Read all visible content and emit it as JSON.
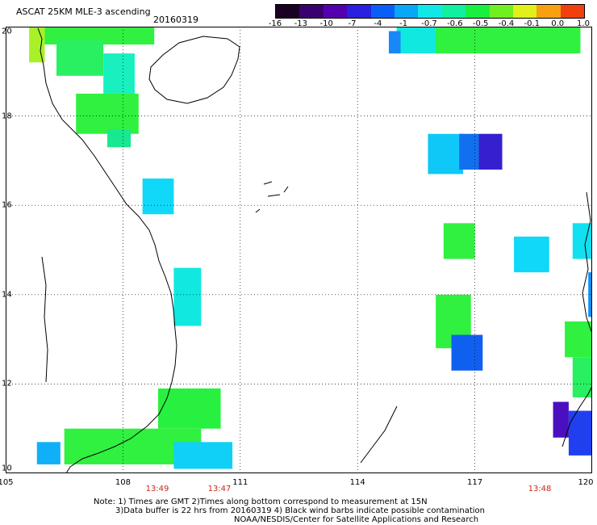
{
  "header": {
    "title": "ASCAT 25KM MLE-3 ascending",
    "date": "20160319"
  },
  "colorbar": {
    "labels": [
      "-16",
      "-13",
      "-10",
      "-7",
      "-4",
      "-1",
      "-0.7",
      "-0.6",
      "-0.5",
      "-0.4",
      "-0.1",
      "0.0",
      "1.0"
    ],
    "colors": [
      "#1a0022",
      "#3a0070",
      "#5500b0",
      "#2a20e0",
      "#0a5ef8",
      "#0aa6f8",
      "#10e8e8",
      "#10f0a0",
      "#18f040",
      "#70f020",
      "#e0f018",
      "#f8a010",
      "#f04010"
    ]
  },
  "axes": {
    "lon_labels": [
      "105",
      "108",
      "111",
      "114",
      "117",
      "120"
    ],
    "lat_labels": [
      "20",
      "18",
      "16",
      "14",
      "12",
      "10"
    ],
    "lon_range": [
      105,
      120
    ],
    "lat_range": [
      10,
      20
    ],
    "grid": true
  },
  "time_labels": [
    "13:49",
    "13:47",
    "13:48"
  ],
  "notes": {
    "line1": "Note: 1) Times are GMT 2)Times along bottom correspond to measurement at 15N",
    "line2": "3)Data buffer is 22 hrs from 20160319 4) Black wind barbs indicate possible contamination",
    "line3": "NOAA/NESDIS/Center for Satellite Applications and Research"
  },
  "cells": [
    {
      "lon": 106.0,
      "lat": 19.6,
      "w": 2.8,
      "h": 1.6,
      "c": "#30f040"
    },
    {
      "lon": 105.6,
      "lat": 19.2,
      "w": 0.4,
      "h": 0.8,
      "c": "#a8f028"
    },
    {
      "lon": 106.3,
      "lat": 18.9,
      "w": 1.2,
      "h": 0.8,
      "c": "#28f060"
    },
    {
      "lon": 107.5,
      "lat": 18.5,
      "w": 0.8,
      "h": 0.9,
      "c": "#18f0c0"
    },
    {
      "lon": 106.8,
      "lat": 17.6,
      "w": 1.6,
      "h": 0.9,
      "c": "#30f040"
    },
    {
      "lon": 107.6,
      "lat": 17.3,
      "w": 0.6,
      "h": 0.4,
      "c": "#18e890"
    },
    {
      "lon": 108.5,
      "lat": 15.8,
      "w": 0.8,
      "h": 0.8,
      "c": "#10d8f8"
    },
    {
      "lon": 109.3,
      "lat": 13.3,
      "w": 0.7,
      "h": 1.3,
      "c": "#10e8e0"
    },
    {
      "lon": 108.9,
      "lat": 11.0,
      "w": 1.6,
      "h": 0.9,
      "c": "#28f040"
    },
    {
      "lon": 106.5,
      "lat": 10.2,
      "w": 3.5,
      "h": 0.8,
      "c": "#30f040"
    },
    {
      "lon": 109.3,
      "lat": 10.1,
      "w": 1.5,
      "h": 0.6,
      "c": "#10d0f8"
    },
    {
      "lon": 105.8,
      "lat": 10.2,
      "w": 0.6,
      "h": 0.5,
      "c": "#10b0f8"
    },
    {
      "lon": 115.0,
      "lat": 19.4,
      "w": 1.2,
      "h": 1.0,
      "c": "#10e8e0"
    },
    {
      "lon": 116.0,
      "lat": 19.4,
      "w": 3.7,
      "h": 0.6,
      "c": "#30f040"
    },
    {
      "lon": 114.8,
      "lat": 19.4,
      "w": 0.3,
      "h": 0.5,
      "c": "#1888f8"
    },
    {
      "lon": 115.8,
      "lat": 16.7,
      "w": 0.9,
      "h": 0.9,
      "c": "#10c8f8"
    },
    {
      "lon": 116.6,
      "lat": 16.8,
      "w": 0.5,
      "h": 0.8,
      "c": "#1070f0"
    },
    {
      "lon": 117.1,
      "lat": 16.8,
      "w": 0.6,
      "h": 0.8,
      "c": "#3520d0"
    },
    {
      "lon": 116.2,
      "lat": 14.8,
      "w": 0.8,
      "h": 0.8,
      "c": "#30f040"
    },
    {
      "lon": 118.0,
      "lat": 14.5,
      "w": 0.9,
      "h": 0.8,
      "c": "#10d8f8"
    },
    {
      "lon": 119.5,
      "lat": 14.8,
      "w": 0.8,
      "h": 0.8,
      "c": "#10e0f0"
    },
    {
      "lon": 116.0,
      "lat": 12.8,
      "w": 0.9,
      "h": 1.2,
      "c": "#30f040"
    },
    {
      "lon": 116.4,
      "lat": 12.3,
      "w": 0.8,
      "h": 0.8,
      "c": "#1060f0"
    },
    {
      "lon": 119.3,
      "lat": 12.6,
      "w": 0.9,
      "h": 0.8,
      "c": "#30f040"
    },
    {
      "lon": 119.5,
      "lat": 11.7,
      "w": 0.9,
      "h": 0.9,
      "c": "#28f060"
    },
    {
      "lon": 119.0,
      "lat": 10.8,
      "w": 0.4,
      "h": 0.8,
      "c": "#4a10c0"
    },
    {
      "lon": 119.4,
      "lat": 10.4,
      "w": 0.6,
      "h": 1.0,
      "c": "#2040f0"
    },
    {
      "lon": 119.9,
      "lat": 13.5,
      "w": 0.2,
      "h": 1.0,
      "c": "#1090f8"
    }
  ]
}
